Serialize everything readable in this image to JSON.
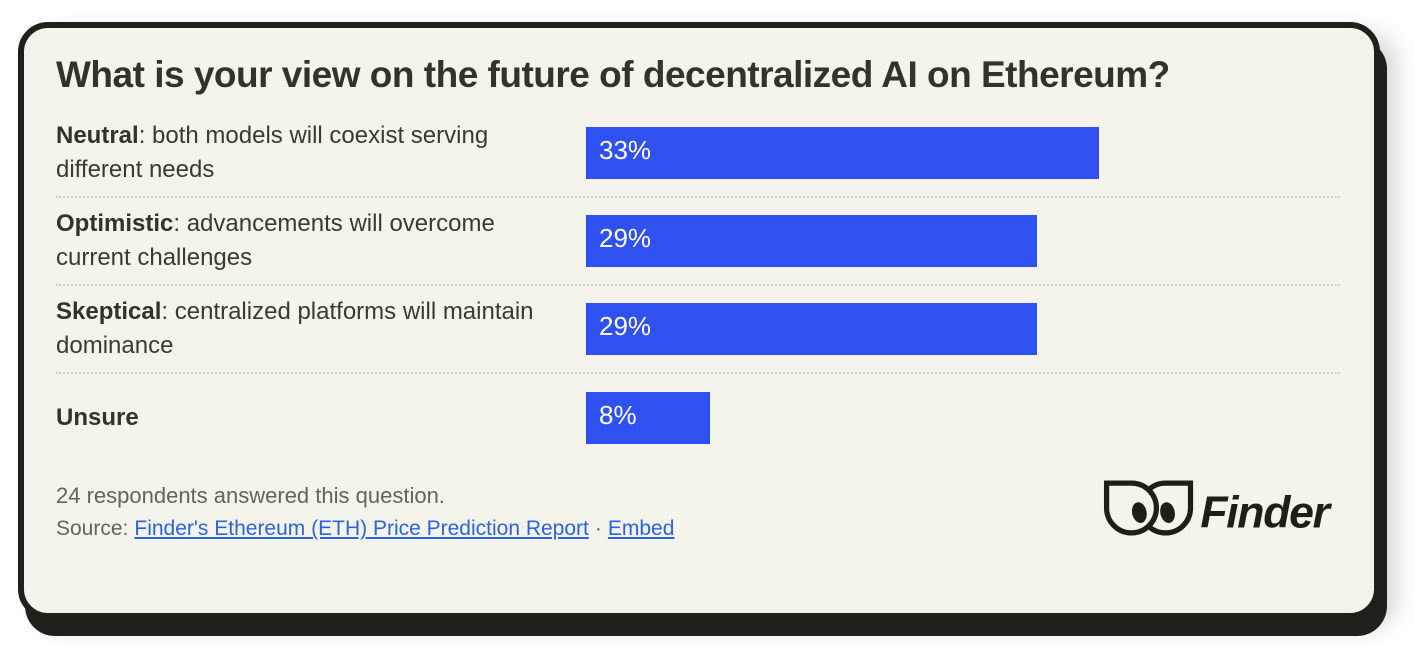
{
  "title": "What is your view on the future of decentralized AI on Ethereum?",
  "rows": [
    {
      "term": "Neutral",
      "desc": ": both models will coexist serving different needs",
      "value": 33,
      "label": "33%"
    },
    {
      "term": "Optimistic",
      "desc": ": advancements will overcome current challenges",
      "value": 29,
      "label": "29%"
    },
    {
      "term": "Skeptical",
      "desc": ": centralized platforms will maintain dominance",
      "value": 29,
      "label": "29%"
    },
    {
      "term": "Unsure",
      "desc": "",
      "value": 8,
      "label": "8%"
    }
  ],
  "footer": {
    "respondents": "24 respondents answered this question.",
    "source_prefix": "Source:",
    "source_link": "Finder's Ethereum (ETH) Price Prediction Report",
    "separator": "·",
    "embed_link": "Embed",
    "brand": "Finder"
  },
  "colors": {
    "bar_blue": "#2f51f2",
    "card_background": "#f5f4ec",
    "card_border": "#21211c",
    "link_blue": "#2c63e0",
    "muted_gray": "#63635f",
    "text_dark": "#33322d"
  },
  "chart_data": {
    "type": "bar",
    "orientation": "horizontal",
    "title": "What is your view on the future of decentralized AI on Ethereum?",
    "categories": [
      "Neutral: both models will coexist serving different needs",
      "Optimistic: advancements will overcome current challenges",
      "Skeptical: centralized platforms will maintain dominance",
      "Unsure"
    ],
    "values": [
      33,
      29,
      29,
      8
    ],
    "value_labels": [
      "33%",
      "29%",
      "29%",
      "8%"
    ],
    "unit": "%",
    "xlim": [
      0,
      100
    ],
    "bar_color": "#2f51f2",
    "grid": false,
    "legend": false,
    "note": "24 respondents answered this question."
  }
}
